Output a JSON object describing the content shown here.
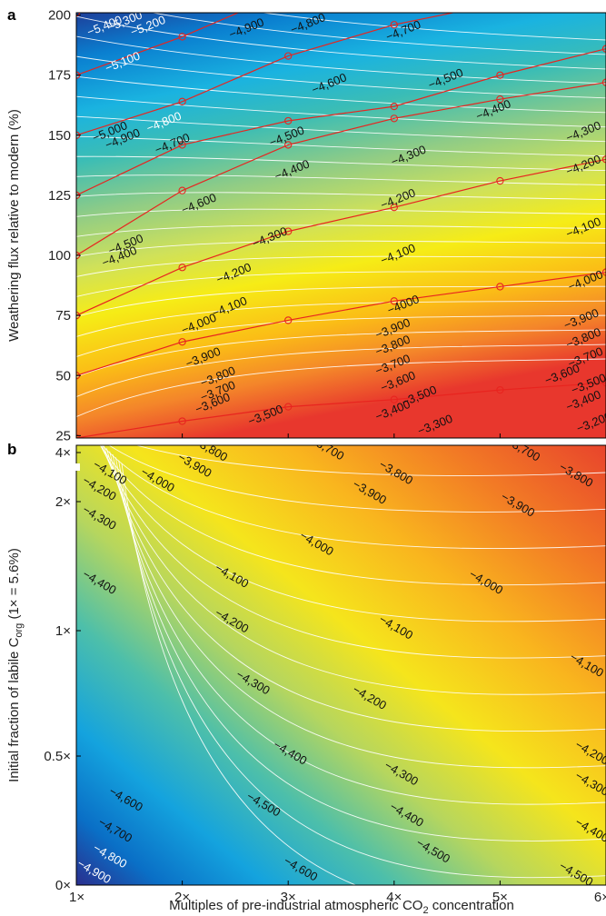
{
  "panels": [
    {
      "label": "a"
    },
    {
      "label": "b"
    }
  ],
  "chart_data": [
    {
      "type": "contour",
      "title": "",
      "xlabel": "",
      "ylabel": "Weathering flux relative to modern (%)",
      "x_ticks": [
        1,
        2,
        3,
        4,
        5,
        6
      ],
      "y_ticks": [
        25,
        50,
        75,
        100,
        125,
        150,
        175,
        200
      ],
      "xlim": [
        1,
        6
      ],
      "ylim": [
        24,
        201
      ],
      "levels": [
        -5400,
        -5300,
        -5200,
        -5100,
        -5000,
        -4900,
        -4800,
        -4700,
        -4600,
        -4500,
        -4400,
        -4300,
        -4200,
        -4100,
        -4000,
        -3900,
        -3800,
        -3700,
        -3600,
        -3500,
        -3400,
        -3300,
        -3200
      ],
      "contour_labels": [
        {
          "text": "−5,400",
          "x": 1.28,
          "y": 194
        },
        {
          "text": "−5,300",
          "x": 1.47,
          "y": 196
        },
        {
          "text": "−5,200",
          "x": 1.69,
          "y": 194
        },
        {
          "text": "−5,100",
          "x": 1.45,
          "y": 179
        },
        {
          "text": "−5,000",
          "x": 1.33,
          "y": 150
        },
        {
          "text": "−4,900",
          "x": 1.45,
          "y": 147
        },
        {
          "text": "−4,800",
          "x": 1.84,
          "y": 154
        },
        {
          "text": "−4,700",
          "x": 1.92,
          "y": 145
        },
        {
          "text": "−4,600",
          "x": 2.17,
          "y": 120
        },
        {
          "text": "−4,500",
          "x": 1.48,
          "y": 103
        },
        {
          "text": "−4,400",
          "x": 1.42,
          "y": 98
        },
        {
          "text": "−4,300",
          "x": 2.84,
          "y": 106
        },
        {
          "text": "−4,200",
          "x": 2.5,
          "y": 91
        },
        {
          "text": "−4,100",
          "x": 2.46,
          "y": 77
        },
        {
          "text": "−4,000",
          "x": 2.17,
          "y": 70
        },
        {
          "text": "−3,900",
          "x": 2.21,
          "y": 56
        },
        {
          "text": "−3,800",
          "x": 2.35,
          "y": 48
        },
        {
          "text": "−3,700",
          "x": 2.35,
          "y": 42
        },
        {
          "text": "−3,600",
          "x": 2.3,
          "y": 37
        },
        {
          "text": "−3,500",
          "x": 2.8,
          "y": 32
        },
        {
          "text": "−4,900",
          "x": 2.62,
          "y": 193
        },
        {
          "text": "−4,800",
          "x": 3.2,
          "y": 195
        },
        {
          "text": "−4,700",
          "x": 4.1,
          "y": 192
        },
        {
          "text": "−4,600",
          "x": 3.4,
          "y": 170
        },
        {
          "text": "−4,500",
          "x": 3.0,
          "y": 148
        },
        {
          "text": "−4,400",
          "x": 3.05,
          "y": 134
        },
        {
          "text": "−4,500",
          "x": 4.5,
          "y": 172
        },
        {
          "text": "−4,400",
          "x": 4.95,
          "y": 159
        },
        {
          "text": "−4,300",
          "x": 4.15,
          "y": 140
        },
        {
          "text": "−4,200",
          "x": 4.05,
          "y": 122
        },
        {
          "text": "−4,100",
          "x": 4.05,
          "y": 99
        },
        {
          "text": "−4000",
          "x": 4.1,
          "y": 78
        },
        {
          "text": "−3,900",
          "x": 4.0,
          "y": 68
        },
        {
          "text": "−3,800",
          "x": 4.0,
          "y": 61
        },
        {
          "text": "−3,700",
          "x": 4.0,
          "y": 53
        },
        {
          "text": "−3,600",
          "x": 4.05,
          "y": 46
        },
        {
          "text": "−3,500",
          "x": 4.25,
          "y": 40
        },
        {
          "text": "−3,400",
          "x": 4.0,
          "y": 34
        },
        {
          "text": "−3,300",
          "x": 4.4,
          "y": 28
        },
        {
          "text": "−4,300",
          "x": 5.8,
          "y": 150
        },
        {
          "text": "−4,200",
          "x": 5.8,
          "y": 136
        },
        {
          "text": "−4,100",
          "x": 5.8,
          "y": 110
        },
        {
          "text": "−4,000",
          "x": 5.82,
          "y": 88
        },
        {
          "text": "−3,900",
          "x": 5.78,
          "y": 72
        },
        {
          "text": "−3,800",
          "x": 5.8,
          "y": 64
        },
        {
          "text": "−3,700",
          "x": 5.82,
          "y": 56
        },
        {
          "text": "−3,600",
          "x": 5.6,
          "y": 49
        },
        {
          "text": "−3,500",
          "x": 5.85,
          "y": 45
        },
        {
          "text": "−3,400",
          "x": 5.8,
          "y": 38
        },
        {
          "text": "−3,200",
          "x": 5.9,
          "y": 29
        }
      ],
      "overlay_lines": [
        {
          "x": [
            1,
            1.0,
            1.0,
            2
          ],
          "y": [
            201,
            201,
            201,
            208
          ]
        },
        {
          "x": [
            1,
            2,
            3
          ],
          "y": [
            175,
            191,
            210
          ]
        },
        {
          "x": [
            1,
            2,
            3,
            4,
            5,
            6
          ],
          "y": [
            150,
            164,
            183,
            196,
            205,
            212
          ]
        },
        {
          "x": [
            1,
            2,
            3,
            4,
            5,
            6
          ],
          "y": [
            125,
            146,
            156,
            162,
            175,
            186
          ]
        },
        {
          "x": [
            1,
            2,
            3,
            4,
            5,
            6
          ],
          "y": [
            100,
            127,
            146,
            157,
            165,
            172
          ]
        },
        {
          "x": [
            1,
            2,
            3,
            4,
            5,
            6
          ],
          "y": [
            75,
            95,
            110,
            120,
            131,
            140
          ]
        },
        {
          "x": [
            1,
            2,
            3,
            4,
            5,
            6
          ],
          "y": [
            50,
            64,
            73,
            81,
            87,
            93
          ]
        },
        {
          "x": [
            1,
            2,
            3,
            4,
            5,
            6
          ],
          "y": [
            24,
            31,
            37,
            40,
            44,
            47
          ]
        }
      ]
    },
    {
      "type": "contour",
      "title": "",
      "xlabel_parts": [
        "Multiples of pre-industrial atmospheric CO",
        "2",
        " concentration"
      ],
      "ylabel_parts": [
        "Initial fraction of labile C",
        "org",
        " (1× = 5.6%)"
      ],
      "x_ticks": [
        1,
        2,
        3,
        4,
        5,
        6
      ],
      "x_tick_labels": [
        "1×",
        "2×",
        "3×",
        "4×",
        "5×",
        "6×"
      ],
      "y_ticks": [
        0,
        0.5,
        1,
        2,
        4
      ],
      "y_tick_labels": [
        "0×",
        "0.5×",
        "1×",
        "2×",
        "4×"
      ],
      "xlim": [
        1,
        6
      ],
      "levels": [
        -4900,
        -4800,
        -4700,
        -4600,
        -4500,
        -4400,
        -4300,
        -4200,
        -4100,
        -4000,
        -3900,
        -3800,
        -3700
      ],
      "contour_labels": [
        {
          "text": "−3,800",
          "x": 2.25,
          "y": 4.0
        },
        {
          "text": "−3,700",
          "x": 3.35,
          "y": 4.1
        },
        {
          "text": "−3,700",
          "x": 5.2,
          "y": 4.0
        },
        {
          "text": "−3,800",
          "x": 4.0,
          "y": 3.05
        },
        {
          "text": "−3,800",
          "x": 5.7,
          "y": 2.95
        },
        {
          "text": "−3,900",
          "x": 2.1,
          "y": 3.35
        },
        {
          "text": "−4,000",
          "x": 1.75,
          "y": 2.75
        },
        {
          "text": "−4,100",
          "x": 1.3,
          "y": 3.05
        },
        {
          "text": "−4,200",
          "x": 1.2,
          "y": 2.4
        },
        {
          "text": "−3,900",
          "x": 3.75,
          "y": 2.25
        },
        {
          "text": "−3,900",
          "x": 5.15,
          "y": 1.95
        },
        {
          "text": "−4,300",
          "x": 1.2,
          "y": 1.85
        },
        {
          "text": "−4,000",
          "x": 3.25,
          "y": 1.65
        },
        {
          "text": "−4,100",
          "x": 2.45,
          "y": 1.4
        },
        {
          "text": "−4,000",
          "x": 4.85,
          "y": 1.35
        },
        {
          "text": "−4,400",
          "x": 1.2,
          "y": 1.35
        },
        {
          "text": "−4,200",
          "x": 2.45,
          "y": 1.05
        },
        {
          "text": "−4,100",
          "x": 4.0,
          "y": 1.0
        },
        {
          "text": "−4,100",
          "x": 5.8,
          "y": 0.85
        },
        {
          "text": "−4,300",
          "x": 2.65,
          "y": 0.78
        },
        {
          "text": "−4,200",
          "x": 3.75,
          "y": 0.72
        },
        {
          "text": "−4,200",
          "x": 5.85,
          "y": 0.5
        },
        {
          "text": "−4,400",
          "x": 3.0,
          "y": 0.5
        },
        {
          "text": "−4,300",
          "x": 4.05,
          "y": 0.42
        },
        {
          "text": "−4,300",
          "x": 5.85,
          "y": 0.38
        },
        {
          "text": "−4,600",
          "x": 1.45,
          "y": 0.32
        },
        {
          "text": "−4,500",
          "x": 2.75,
          "y": 0.3
        },
        {
          "text": "−4,400",
          "x": 4.1,
          "y": 0.26
        },
        {
          "text": "−4,400",
          "x": 5.85,
          "y": 0.2
        },
        {
          "text": "−4,700",
          "x": 1.35,
          "y": 0.2
        },
        {
          "text": "−4,500",
          "x": 4.35,
          "y": 0.12
        },
        {
          "text": "−4,800",
          "x": 1.3,
          "y": 0.1
        },
        {
          "text": "−4,600",
          "x": 3.1,
          "y": 0.05
        },
        {
          "text": "−4,900",
          "x": 1.15,
          "y": 0.04
        },
        {
          "text": "−4,500",
          "x": 5.7,
          "y": 0.03
        }
      ]
    }
  ]
}
